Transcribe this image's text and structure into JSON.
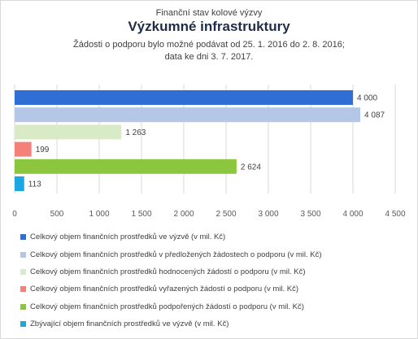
{
  "titles": {
    "line1": "Finanční stav kolové výzvy",
    "line2": "Výzkumné infrastruktury",
    "line3": "Žádosti o podporu bylo možné  podávat od 25. 1. 2016 do 2. 8. 2016;",
    "line4": "data ke dni 3. 7. 2017."
  },
  "chart_data": {
    "type": "bar",
    "orientation": "horizontal",
    "xlim": [
      0,
      4500
    ],
    "ticks": [
      0,
      500,
      1000,
      1500,
      2000,
      2500,
      3000,
      3500,
      4000,
      4500
    ],
    "tick_labels": [
      "0",
      "500",
      "1 000",
      "1 500",
      "2 000",
      "2 500",
      "3 000",
      "3 500",
      "4 000",
      "4 500"
    ],
    "grid": "vertical",
    "legend_position": "bottom",
    "series": [
      {
        "name": "Celkový objem finančních prostředků ve výzvě (v mil. Kč)",
        "value": 4000,
        "label": "4 000",
        "color": "#2e6ed5"
      },
      {
        "name": "Celkový objem finančních prostředků v předložených žádostech o podporu (v mil. Kč)",
        "value": 4087,
        "label": "4 087",
        "color": "#b4c7e7"
      },
      {
        "name": "Celkový objem finančních prostředků hodnocených žádostí o podporu (v mil. Kč)",
        "value": 1263,
        "label": "1 263",
        "color": "#d9ebc6"
      },
      {
        "name": "Celkový objem finančních prostředků vyřazených žádostí o podporu (v mil. Kč)",
        "value": 199,
        "label": "199",
        "color": "#f4807a"
      },
      {
        "name": "Celkový objem finančních prostředků podpořených žádostí o podporu (v mil. Kč)",
        "value": 2624,
        "label": "2 624",
        "color": "#8cc63e"
      },
      {
        "name": "Zbývající objem finančních prostředků ve výzvě (v mil. Kč)",
        "value": 113,
        "label": "113",
        "color": "#1ba8e0"
      }
    ]
  }
}
